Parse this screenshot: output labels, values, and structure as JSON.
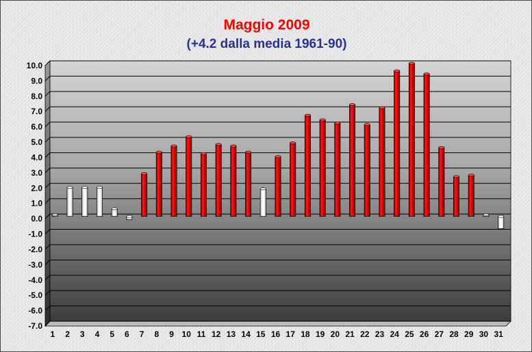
{
  "chart_data": {
    "type": "bar",
    "title": "Maggio 2009",
    "subtitle": "(+4.2 dalla media 1961-90)",
    "xlabel": "",
    "ylabel": "",
    "ylim": [
      -7.0,
      10.0
    ],
    "ytick_step": 1.0,
    "grid": true,
    "categories": [
      "1",
      "2",
      "3",
      "4",
      "5",
      "6",
      "7",
      "8",
      "9",
      "10",
      "11",
      "12",
      "13",
      "14",
      "15",
      "16",
      "17",
      "18",
      "19",
      "20",
      "21",
      "22",
      "23",
      "24",
      "25",
      "26",
      "27",
      "28",
      "29",
      "30",
      "31"
    ],
    "values": [
      0.1,
      1.9,
      1.9,
      1.9,
      0.5,
      -0.2,
      2.8,
      4.2,
      4.6,
      5.2,
      4.1,
      4.7,
      4.6,
      4.2,
      1.8,
      3.9,
      4.8,
      6.6,
      6.3,
      6.1,
      7.3,
      6.0,
      7.1,
      9.5,
      10.0,
      9.3,
      4.5,
      2.6,
      2.7,
      0.1,
      -0.8
    ],
    "colors": {
      "positive": "#e80000",
      "low": "#ffffff"
    },
    "low_threshold": 2.0
  }
}
